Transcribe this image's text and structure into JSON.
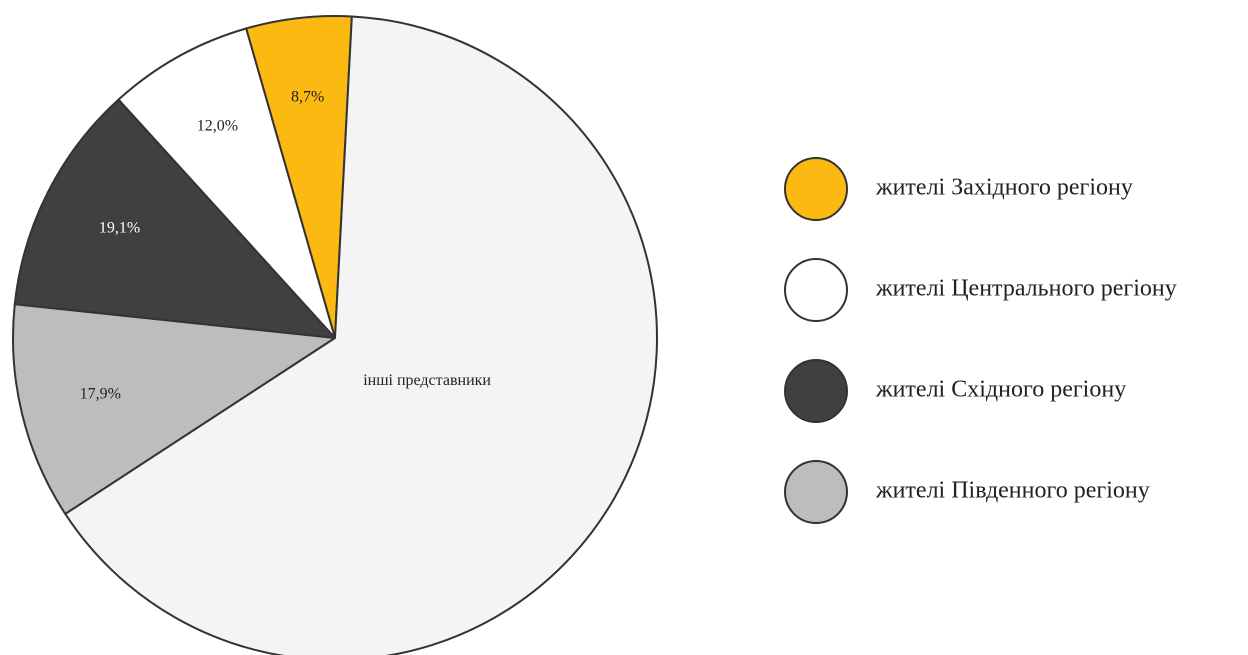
{
  "chart_data": {
    "type": "pie",
    "categories": [
      "жителі Західного регіону",
      "жителі Центрального регіону",
      "жителі Східного регіону",
      "жителі Південного регіону",
      "інші представники"
    ],
    "values": [
      8.7,
      12.0,
      19.1,
      17.9,
      107
    ],
    "value_labels": [
      "8,7%",
      "12,0%",
      "19,1%",
      "17,9%",
      null
    ],
    "colors": [
      "#fbb912",
      "#ffffff",
      "#404041",
      "#bcbdbc",
      "#f4f4f4"
    ],
    "label_colors": [
      "#222222",
      "#222222",
      "#ffffff",
      "#222222",
      "#222222"
    ],
    "legend": "right"
  }
}
